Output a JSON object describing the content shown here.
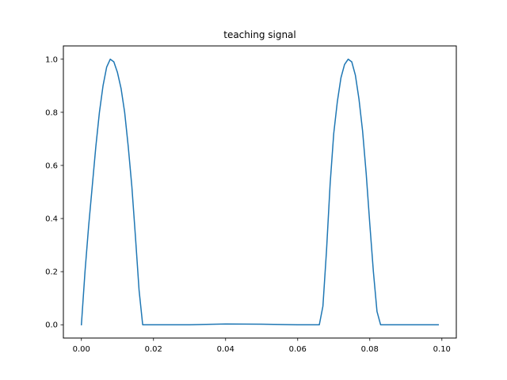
{
  "chart_data": {
    "type": "line",
    "title": "teaching signal",
    "xlabel": "",
    "ylabel": "",
    "xlim": [
      -0.005,
      0.104
    ],
    "ylim": [
      -0.05,
      1.05
    ],
    "grid": false,
    "x_ticks": [
      0.0,
      0.02,
      0.04,
      0.06,
      0.08,
      0.1
    ],
    "x_tick_labels": [
      "0.00",
      "0.02",
      "0.04",
      "0.06",
      "0.08",
      "0.10"
    ],
    "y_ticks": [
      0.0,
      0.2,
      0.4,
      0.6,
      0.8,
      1.0
    ],
    "y_tick_labels": [
      "0.0",
      "0.2",
      "0.4",
      "0.6",
      "0.8",
      "1.0"
    ],
    "series": [
      {
        "color": "#1f77b4",
        "x": [
          0.0,
          0.001,
          0.002,
          0.003,
          0.004,
          0.005,
          0.006,
          0.007,
          0.008,
          0.009,
          0.01,
          0.011,
          0.012,
          0.013,
          0.014,
          0.015,
          0.016,
          0.017,
          0.02,
          0.03,
          0.04,
          0.05,
          0.06,
          0.066,
          0.067,
          0.068,
          0.069,
          0.07,
          0.071,
          0.072,
          0.073,
          0.074,
          0.075,
          0.076,
          0.077,
          0.078,
          0.079,
          0.08,
          0.081,
          0.082,
          0.083,
          0.09,
          0.099
        ],
        "y": [
          0.0,
          0.2,
          0.37,
          0.52,
          0.67,
          0.8,
          0.9,
          0.97,
          1.0,
          0.99,
          0.95,
          0.89,
          0.8,
          0.67,
          0.52,
          0.33,
          0.13,
          0.0,
          0.0,
          0.0,
          0.003,
          0.002,
          0.0,
          0.0,
          0.07,
          0.28,
          0.53,
          0.72,
          0.84,
          0.93,
          0.98,
          1.0,
          0.99,
          0.94,
          0.85,
          0.73,
          0.57,
          0.38,
          0.2,
          0.05,
          0.0,
          0.0,
          0.0
        ]
      }
    ]
  }
}
